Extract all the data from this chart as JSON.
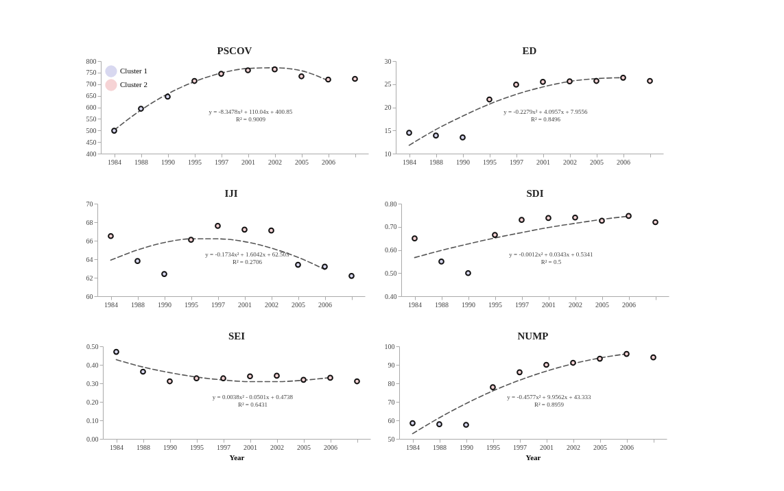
{
  "chart_data": [
    {
      "type": "scatter",
      "title": "PSCOV",
      "legend": "top left",
      "marker": "circle",
      "grid": false,
      "categories": [
        "1984",
        "1988",
        "1990",
        "1995",
        "1997",
        "2001",
        "2002",
        "2005",
        "2006",
        null
      ],
      "ylim": [
        400,
        800
      ],
      "yticks": [
        400,
        450,
        500,
        550,
        600,
        650,
        700,
        750,
        800
      ],
      "annotations": [
        "y = -8.3478x² + 110.04x + 400.85",
        "R² = 0.9009"
      ],
      "series": [
        {
          "name": "Cluster 1",
          "color": "#d8d8f0",
          "values": [
            499,
            594,
            646,
            null,
            null,
            null,
            null,
            null,
            null,
            null
          ]
        },
        {
          "name": "Cluster 2",
          "color": "#f6d3d5",
          "values": [
            null,
            null,
            null,
            714,
            745,
            760,
            764,
            734,
            720,
            723
          ]
        },
        {
          "type": "line",
          "color": "#555555",
          "line_style": "dashed",
          "marker": "none",
          "values": [
            502,
            588,
            658,
            711,
            748,
            768,
            771,
            758,
            715,
            null
          ]
        }
      ]
    },
    {
      "type": "scatter",
      "title": "ED",
      "marker": "circle",
      "grid": false,
      "categories": [
        "1984",
        "1988",
        "1990",
        "1995",
        "1997",
        "2001",
        "2002",
        "2005",
        "2006",
        null
      ],
      "ylim": [
        10,
        30
      ],
      "yticks": [
        10,
        15,
        20,
        25,
        30
      ],
      "annotations": [
        "y = -0.2279x² + 4.0957x + 7.9556",
        "R² = 0.8496"
      ],
      "series": [
        {
          "color": "#d8d8f0",
          "values": [
            14.5,
            13.9,
            13.5,
            null,
            null,
            null,
            null,
            null,
            null,
            null
          ]
        },
        {
          "color": "#f6d3d5",
          "values": [
            null,
            null,
            null,
            21.7,
            24.9,
            25.5,
            25.6,
            25.7,
            26.4,
            25.7
          ]
        },
        {
          "type": "line",
          "color": "#555555",
          "line_style": "dashed",
          "marker": "none",
          "values": [
            11.8,
            15.2,
            18.1,
            20.7,
            22.8,
            24.4,
            25.6,
            26.2,
            26.4,
            null
          ]
        }
      ]
    },
    {
      "type": "scatter",
      "title": "IJI",
      "marker": "circle",
      "grid": false,
      "categories": [
        "1984",
        "1988",
        "1990",
        "1995",
        "1997",
        "2001",
        "2002",
        "2005",
        "2006",
        null
      ],
      "ylim": [
        60,
        70
      ],
      "yticks": [
        60,
        62,
        64,
        66,
        68,
        70
      ],
      "annotations": [
        "y = -0.1734x² + 1.6042x + 62.503",
        "R² = 0.2706"
      ],
      "series": [
        {
          "color": "#d8d8f0",
          "values": [
            null,
            63.8,
            62.4,
            null,
            null,
            null,
            null,
            63.4,
            63.2,
            62.2
          ]
        },
        {
          "color": "#f6d3d5",
          "values": [
            66.5,
            null,
            null,
            66.1,
            67.6,
            67.2,
            67.1,
            null,
            null,
            null
          ]
        },
        {
          "type": "line",
          "color": "#555555",
          "line_style": "dashed",
          "marker": "none",
          "values": [
            63.9,
            65.0,
            65.8,
            66.2,
            66.2,
            65.9,
            65.2,
            64.2,
            62.9,
            null
          ]
        }
      ]
    },
    {
      "type": "scatter",
      "title": "SDI",
      "marker": "circle",
      "grid": false,
      "categories": [
        "1984",
        "1988",
        "1990",
        "1995",
        "1997",
        "2001",
        "2002",
        "2005",
        "2006",
        null
      ],
      "ylim": [
        0.4,
        0.8
      ],
      "yticks": [
        {
          "value": 0.4,
          "label": "0.40"
        },
        {
          "value": 0.5,
          "label": "0.50"
        },
        {
          "value": 0.6,
          "label": "0.60"
        },
        {
          "value": 0.7,
          "label": "0.70"
        },
        {
          "value": 0.8,
          "label": "0.80"
        }
      ],
      "annotations": [
        "y = -0.0012x² + 0.0343x + 0.5341",
        "R² = 0.5"
      ],
      "series": [
        {
          "color": "#d8d8f0",
          "values": [
            null,
            0.55,
            0.5,
            null,
            null,
            null,
            null,
            null,
            null,
            null
          ]
        },
        {
          "color": "#f6d3d5",
          "values": [
            0.65,
            null,
            null,
            0.665,
            0.73,
            0.738,
            0.74,
            0.726,
            0.747,
            0.72
          ]
        },
        {
          "type": "line",
          "color": "#555555",
          "line_style": "dashed",
          "marker": "none",
          "values": [
            0.567,
            0.598,
            0.626,
            0.652,
            0.675,
            0.697,
            0.715,
            0.732,
            0.746,
            null
          ]
        }
      ]
    },
    {
      "type": "scatter",
      "title": "SEI",
      "xlabel": "Year",
      "marker": "circle",
      "grid": false,
      "categories": [
        "1984",
        "1988",
        "1990",
        "1995",
        "1997",
        "2001",
        "2002",
        "2005",
        "2006",
        null
      ],
      "ylim": [
        0,
        0.5
      ],
      "yticks": [
        {
          "value": 0,
          "label": "0.00"
        },
        {
          "value": 0.1,
          "label": "0.10"
        },
        {
          "value": 0.2,
          "label": "0.20"
        },
        {
          "value": 0.3,
          "label": "0.30"
        },
        {
          "value": 0.4,
          "label": "0.40"
        },
        {
          "value": 0.5,
          "label": "0.50"
        }
      ],
      "annotations": [
        "y = 0.0038x² - 0.0501x + 0.4738",
        "R² = 0.6431"
      ],
      "series": [
        {
          "color": "#d8d8f0",
          "values": [
            0.47,
            0.363,
            null,
            null,
            null,
            null,
            null,
            null,
            null,
            null
          ]
        },
        {
          "color": "#f6d3d5",
          "values": [
            null,
            null,
            0.311,
            0.327,
            0.327,
            0.338,
            0.341,
            0.319,
            0.33,
            0.311
          ]
        },
        {
          "type": "line",
          "color": "#555555",
          "line_style": "dashed",
          "marker": "none",
          "values": [
            0.428,
            0.388,
            0.358,
            0.334,
            0.318,
            0.309,
            0.309,
            0.317,
            0.331,
            null
          ]
        }
      ]
    },
    {
      "type": "scatter",
      "title": "NUMP",
      "xlabel": "Year",
      "marker": "circle",
      "grid": false,
      "categories": [
        "1984",
        "1988",
        "1990",
        "1995",
        "1997",
        "2001",
        "2002",
        "2005",
        "2006",
        null
      ],
      "ylim": [
        50,
        100
      ],
      "yticks": [
        50,
        60,
        70,
        80,
        90,
        100
      ],
      "annotations": [
        "y = -0.4577x² + 9.9562x + 43.333",
        "R² = 0.8959"
      ],
      "series": [
        {
          "color": "#d8d8f0",
          "values": [
            58.5,
            57.9,
            57.6,
            null,
            null,
            null,
            null,
            null,
            null,
            null
          ]
        },
        {
          "color": "#f6d3d5",
          "values": [
            null,
            null,
            null,
            77.9,
            86.0,
            90.0,
            91.1,
            93.3,
            95.9,
            94.0
          ]
        },
        {
          "type": "line",
          "color": "#555555",
          "line_style": "dashed",
          "marker": "none",
          "values": [
            52.8,
            61.4,
            69.1,
            75.9,
            81.7,
            86.6,
            90.6,
            93.7,
            95.9,
            null
          ]
        }
      ]
    }
  ]
}
